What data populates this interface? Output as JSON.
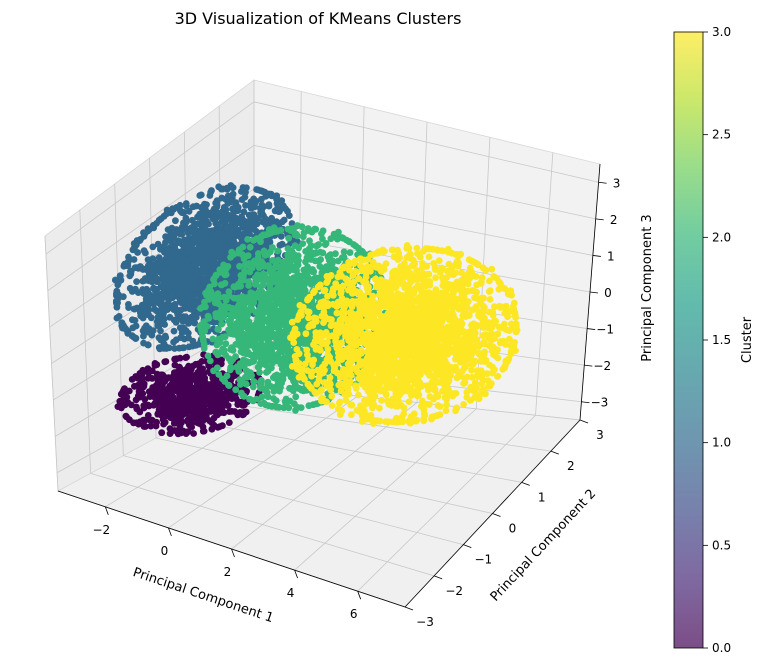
{
  "chart_data": {
    "type": "scatter",
    "projection": "3d",
    "title": "3D Visualization of KMeans Clusters",
    "xlabel": "Principal Component 1",
    "ylabel": "Principal Component 2",
    "zlabel": "Principal Component 3",
    "xlim": [
      -3.5,
      7.5
    ],
    "ylim": [
      -3,
      3
    ],
    "zlim": [
      -3.5,
      3.5
    ],
    "xticks": [
      "−2",
      "0",
      "2",
      "4",
      "6"
    ],
    "yticks": [
      "−3",
      "−2",
      "−1",
      "0",
      "1",
      "2",
      "3"
    ],
    "zticks": [
      "−3",
      "−2",
      "−1",
      "0",
      "1",
      "2",
      "3"
    ],
    "grid": true,
    "colorbar": {
      "label": "Cluster",
      "min": 0.0,
      "max": 3.0,
      "ticks": [
        "0.0",
        "0.5",
        "1.0",
        "1.5",
        "2.0",
        "2.5",
        "3.0"
      ],
      "colormap": "viridis",
      "alpha": 0.7
    },
    "clusters": [
      {
        "cluster": 0,
        "color": "#440154",
        "center_pc1": -1.5,
        "center_pc2": -0.4,
        "center_pc3": -2.0
      },
      {
        "cluster": 1,
        "color": "#31688e",
        "center_pc1": -1.3,
        "center_pc2": 0.6,
        "center_pc3": 1.2
      },
      {
        "cluster": 2,
        "color": "#35b779",
        "center_pc1": 1.2,
        "center_pc2": 0.0,
        "center_pc3": 0.0
      },
      {
        "cluster": 3,
        "color": "#fde725",
        "center_pc1": 4.0,
        "center_pc2": 0.0,
        "center_pc3": 0.0
      }
    ]
  }
}
